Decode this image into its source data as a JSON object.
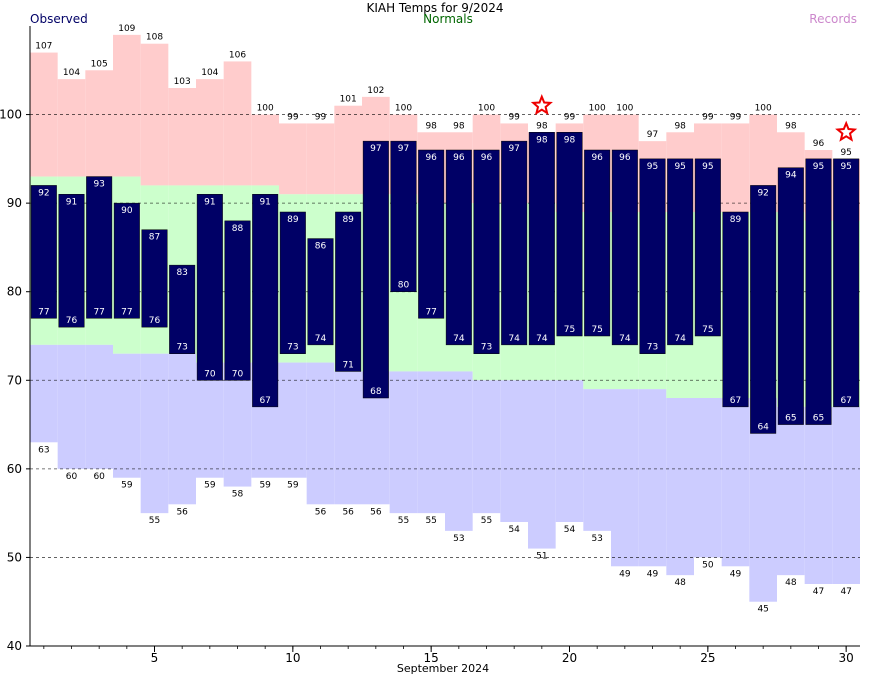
{
  "chart_data": {
    "type": "bar",
    "title": "KIAH Temps for 9/2024",
    "legend": [
      {
        "label": "Observed",
        "color": "#000066"
      },
      {
        "label": "Normals",
        "color": "#006600"
      },
      {
        "label": "Records",
        "color": "#cc88cc"
      }
    ],
    "xlabel": "September 2024",
    "ylabel": "",
    "ylim": [
      40,
      110
    ],
    "xlim": [
      0.5,
      30.5
    ],
    "y_ticks": [
      40,
      50,
      60,
      70,
      80,
      90,
      100
    ],
    "x_ticks": [
      5,
      10,
      15,
      20,
      25,
      30
    ],
    "grid": "dashed horizontal",
    "days": [
      1,
      2,
      3,
      4,
      5,
      6,
      7,
      8,
      9,
      10,
      11,
      12,
      13,
      14,
      15,
      16,
      17,
      18,
      19,
      20,
      21,
      22,
      23,
      24,
      25,
      26,
      27,
      28,
      29,
      30
    ],
    "observed_high": [
      92,
      91,
      93,
      90,
      87,
      83,
      91,
      88,
      91,
      89,
      86,
      89,
      97,
      97,
      96,
      96,
      96,
      97,
      98,
      98,
      96,
      96,
      95,
      95,
      95,
      89,
      92,
      94,
      95,
      95
    ],
    "observed_low": [
      77,
      76,
      77,
      77,
      76,
      73,
      70,
      70,
      67,
      73,
      74,
      71,
      68,
      80,
      77,
      74,
      73,
      74,
      74,
      75,
      75,
      74,
      73,
      74,
      75,
      67,
      64,
      65,
      65,
      67
    ],
    "record_high": [
      107,
      104,
      105,
      109,
      108,
      103,
      104,
      106,
      100,
      99,
      99,
      101,
      102,
      100,
      98,
      98,
      100,
      99,
      98,
      99,
      100,
      100,
      97,
      98,
      99,
      99,
      100,
      98,
      96,
      95
    ],
    "record_low": [
      63,
      60,
      60,
      59,
      55,
      56,
      59,
      58,
      59,
      59,
      56,
      56,
      56,
      55,
      55,
      53,
      55,
      54,
      51,
      54,
      53,
      49,
      49,
      48,
      50,
      49,
      45,
      48,
      47,
      47
    ],
    "normal_high": [
      93,
      93,
      93,
      93,
      92,
      92,
      92,
      92,
      92,
      91,
      91,
      91,
      91,
      91,
      90,
      90,
      90,
      90,
      90,
      89,
      89,
      89,
      89,
      89,
      89,
      89,
      89,
      89,
      88,
      88
    ],
    "normal_low": [
      74,
      74,
      74,
      73,
      73,
      73,
      72,
      72,
      72,
      72,
      72,
      71,
      71,
      71,
      71,
      71,
      70,
      70,
      70,
      70,
      69,
      69,
      69,
      68,
      68,
      68,
      68,
      67,
      67,
      67
    ],
    "record_markers": [
      {
        "day": 19,
        "value": 101
      },
      {
        "day": 30,
        "value": 98
      }
    ],
    "colors": {
      "record_band": "#ffcccc",
      "normal_band": "#ccffcc",
      "record_low_band": "#ccccff",
      "observed_bar": "#000066",
      "observed_label": "#ffffff",
      "record_label": "#000000",
      "marker": "#ee0000",
      "title": "#000000",
      "observed_legend": "#000066",
      "normals_legend": "#006600",
      "records_legend": "#cc88cc"
    }
  }
}
